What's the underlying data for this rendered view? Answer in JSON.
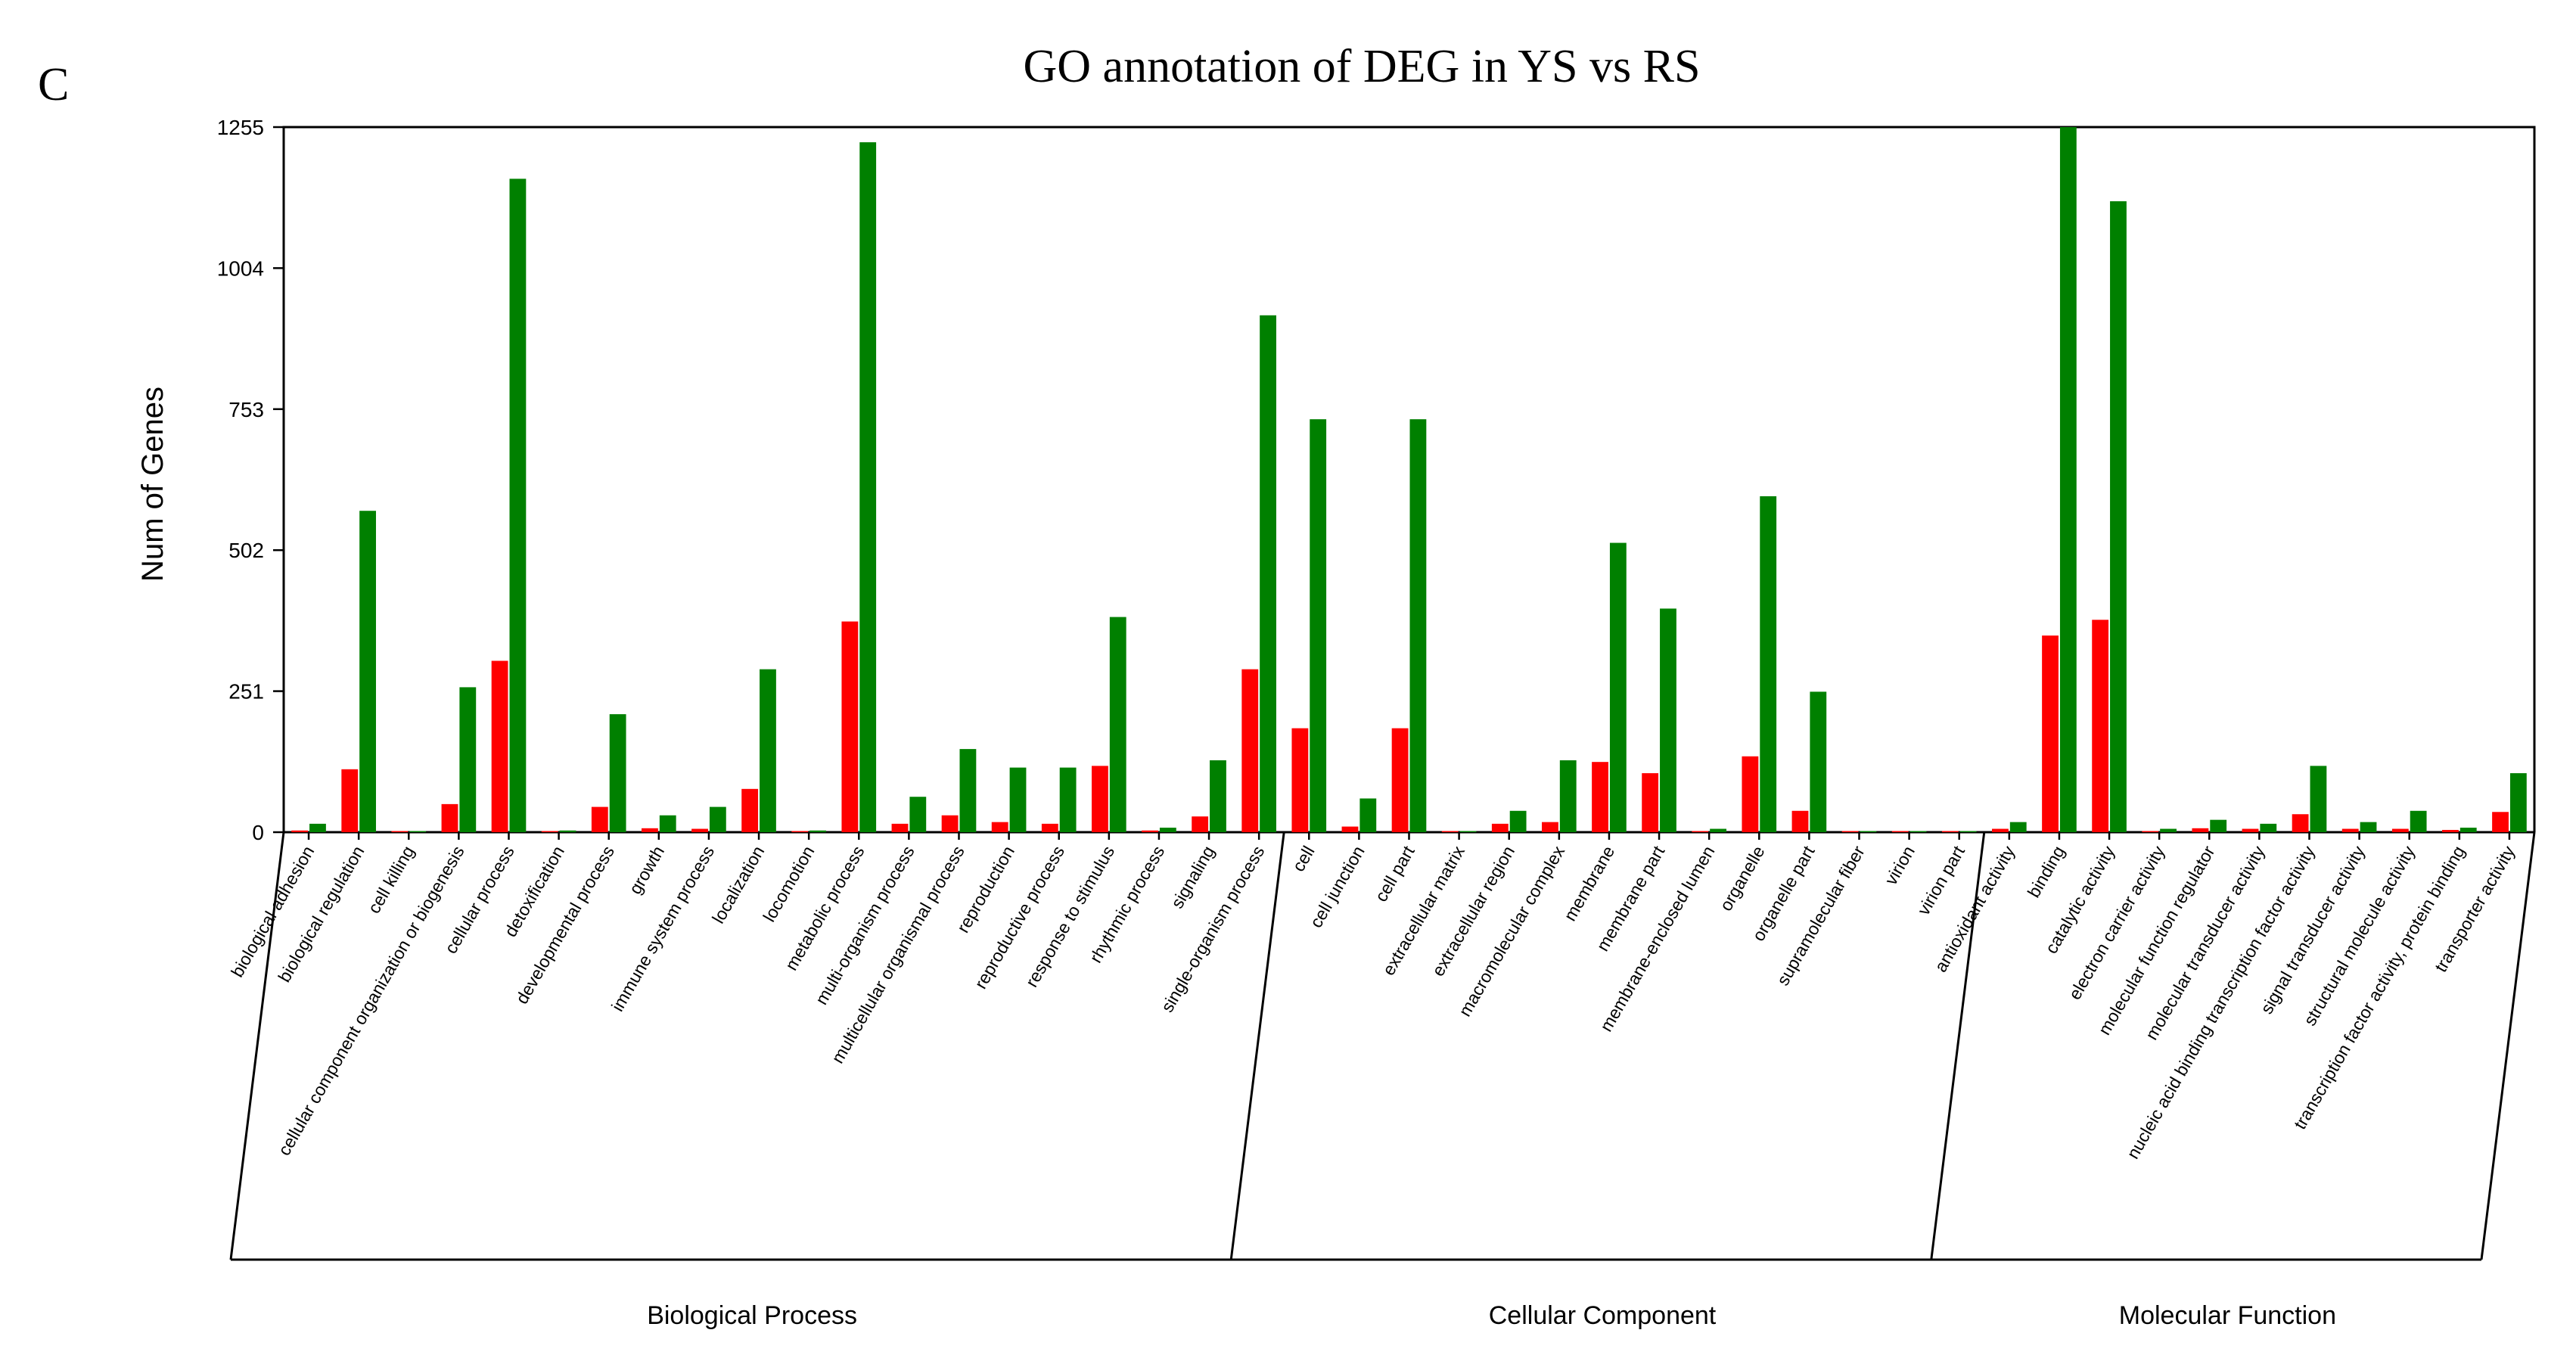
{
  "panel_label": "C",
  "chart_data": {
    "type": "bar",
    "title": "GO annotation of DEG in YS vs RS",
    "xlabel": "",
    "ylabel": "Num of Genes",
    "ylim": [
      0,
      1255
    ],
    "yticks": [
      "0",
      "251",
      "502",
      "753",
      "1004",
      "1255"
    ],
    "grid": false,
    "categories": [
      "biological adhesion",
      "biological regulation",
      "cell killing",
      "cellular component organization or biogenesis",
      "cellular process",
      "detoxification",
      "developmental process",
      "growth",
      "immune system process",
      "localization",
      "locomotion",
      "metabolic process",
      "multi-organism process",
      "multicellular organismal process",
      "reproduction",
      "reproductive process",
      "response to stimulus",
      "rhythmic process",
      "signaling",
      "single-organism process",
      "cell",
      "cell junction",
      "cell part",
      "extracellular matrix",
      "extracellular region",
      "macromolecular complex",
      "membrane",
      "membrane part",
      "membrane-enclosed lumen",
      "organelle",
      "organelle part",
      "supramolecular fiber",
      "virion",
      "virion part",
      "antioxidant activity",
      "binding",
      "catalytic activity",
      "electron carrier activity",
      "molecular function regulator",
      "molecular transducer activity",
      "nucleic acid binding transcription factor activity",
      "signal transducer activity",
      "structural molecule activity",
      "transcription factor activity, protein binding",
      "transporter activity"
    ],
    "groups": [
      {
        "name": "Biological Process",
        "start": 0,
        "end": 19
      },
      {
        "name": "Cellular Component",
        "start": 20,
        "end": 33
      },
      {
        "name": "Molecular Function",
        "start": 34,
        "end": 44
      }
    ],
    "series": [
      {
        "color": "#ff0000",
        "values": [
          3,
          112,
          2,
          50,
          305,
          2,
          45,
          7,
          6,
          77,
          2,
          375,
          15,
          30,
          18,
          15,
          118,
          3,
          28,
          290,
          185,
          10,
          185,
          2,
          15,
          18,
          125,
          105,
          2,
          135,
          38,
          2,
          2,
          2,
          6,
          350,
          378,
          2,
          7,
          6,
          32,
          6,
          6,
          4,
          36
        ]
      },
      {
        "color": "#008000",
        "values": [
          15,
          572,
          2,
          258,
          1163,
          3,
          210,
          30,
          45,
          290,
          3,
          1228,
          63,
          148,
          115,
          115,
          383,
          8,
          128,
          920,
          735,
          60,
          735,
          2,
          38,
          128,
          515,
          398,
          6,
          598,
          250,
          2,
          2,
          2,
          18,
          1255,
          1123,
          6,
          22,
          15,
          118,
          18,
          38,
          8,
          105
        ]
      }
    ]
  }
}
